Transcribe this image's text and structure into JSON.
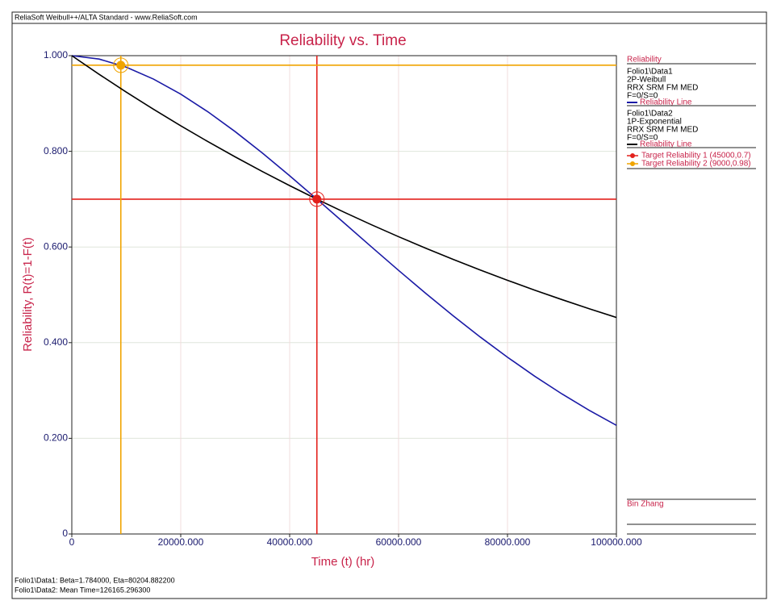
{
  "window_title": "ReliaSoft Weibull++/ALTA Standard - www.ReliaSoft.com",
  "chart_data": {
    "type": "line",
    "title": "Reliability vs. Time",
    "x_label": "Time (t) (hr)",
    "y_label": "Reliability, R(t)=1-F(t)",
    "legend_title": "Reliability",
    "xlim": [
      0,
      100000
    ],
    "ylim": [
      0,
      1
    ],
    "xticks": [
      0,
      {
        "value": 20000,
        "label": "20000.000"
      },
      {
        "value": 40000,
        "label": "40000.000"
      },
      {
        "value": 60000,
        "label": "60000.000"
      },
      {
        "value": 80000,
        "label": "80000.000"
      },
      {
        "value": 100000,
        "label": "100000.000"
      }
    ],
    "yticks": [
      0,
      {
        "value": 0.2,
        "label": "0.200"
      },
      {
        "value": 0.4,
        "label": "0.400"
      },
      {
        "value": 0.6,
        "label": "0.600"
      },
      {
        "value": 0.8,
        "label": "0.800"
      },
      {
        "value": 1,
        "label": "1.000"
      }
    ],
    "grid": true,
    "x": [
      0,
      5000,
      10000,
      15000,
      20000,
      25000,
      30000,
      35000,
      40000,
      45000,
      50000,
      55000,
      60000,
      65000,
      70000,
      75000,
      80000,
      85000,
      90000,
      95000,
      100000
    ],
    "series": [
      {
        "name": "Reliability Line",
        "color": "#1a1aa6",
        "info": [
          "Folio1\\Data1",
          "2P-Weibull",
          "RRX SRM FM MED",
          "F=0/S=0"
        ],
        "values": [
          1,
          0.99294,
          0.97593,
          0.95101,
          0.91952,
          0.88255,
          0.84117,
          0.79632,
          0.74894,
          0.70004,
          0.65024,
          0.60041,
          0.55112,
          0.50293,
          0.45638,
          0.41177,
          0.36956,
          0.32984,
          0.29281,
          0.25859,
          0.22715
        ]
      },
      {
        "name": "Reliability Line",
        "color": "#000000",
        "info": [
          "Folio1\\Data2",
          "1P-Exponential",
          "RRX SRM FM MED",
          "F=0/S=0"
        ],
        "values": [
          1,
          0.96114,
          0.92378,
          0.8879,
          0.85339,
          0.82025,
          0.78836,
          0.75773,
          0.72829,
          0.69998,
          0.67279,
          0.64665,
          0.62152,
          0.59737,
          0.57415,
          0.55184,
          0.5304,
          0.50979,
          0.48998,
          0.47094,
          0.45263
        ]
      }
    ],
    "targets": [
      {
        "name": "Target Reliability 1 (45000,0.7)",
        "x": 45000,
        "y": 0.7,
        "color": "#e3211c"
      },
      {
        "name": "Target Reliability 2 (9000,0.98)",
        "x": 9000,
        "y": 0.98,
        "color": "#f0a400"
      }
    ],
    "author": "Bin Zhang"
  },
  "footer": [
    "Folio1\\Data1: Beta=1.784000, Eta=80204.882200",
    "Folio1\\Data2: Mean Time=126165.296300"
  ]
}
